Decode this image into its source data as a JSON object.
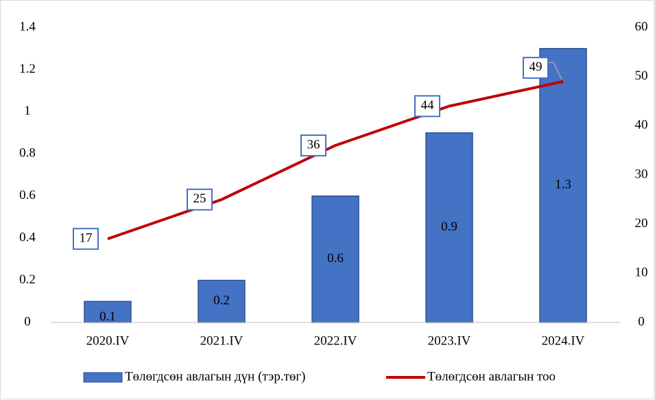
{
  "chart_data": {
    "type": "bar-line",
    "categories": [
      "2020.IV",
      "2021.IV",
      "2022.IV",
      "2023.IV",
      "2024.IV"
    ],
    "series": [
      {
        "name": "Төлөгдсөн авлагын дүн (тэр.төг)",
        "type": "bar",
        "color": "#4472c4",
        "values": [
          0.1,
          0.2,
          0.6,
          0.9,
          1.3
        ]
      },
      {
        "name": "Төлөгдсөн авлагын тоо",
        "type": "line",
        "color": "#c00000",
        "axis": "y2",
        "values": [
          17,
          25,
          36,
          44,
          49
        ]
      }
    ],
    "ylim": [
      0,
      1.4
    ],
    "yticks": [
      0,
      0.2,
      0.4,
      0.6,
      0.8,
      1,
      1.2,
      1.4
    ],
    "y2lim": [
      0,
      60
    ],
    "y2ticks": [
      0,
      10,
      20,
      30,
      40,
      50,
      60
    ],
    "legend": "bottom"
  }
}
